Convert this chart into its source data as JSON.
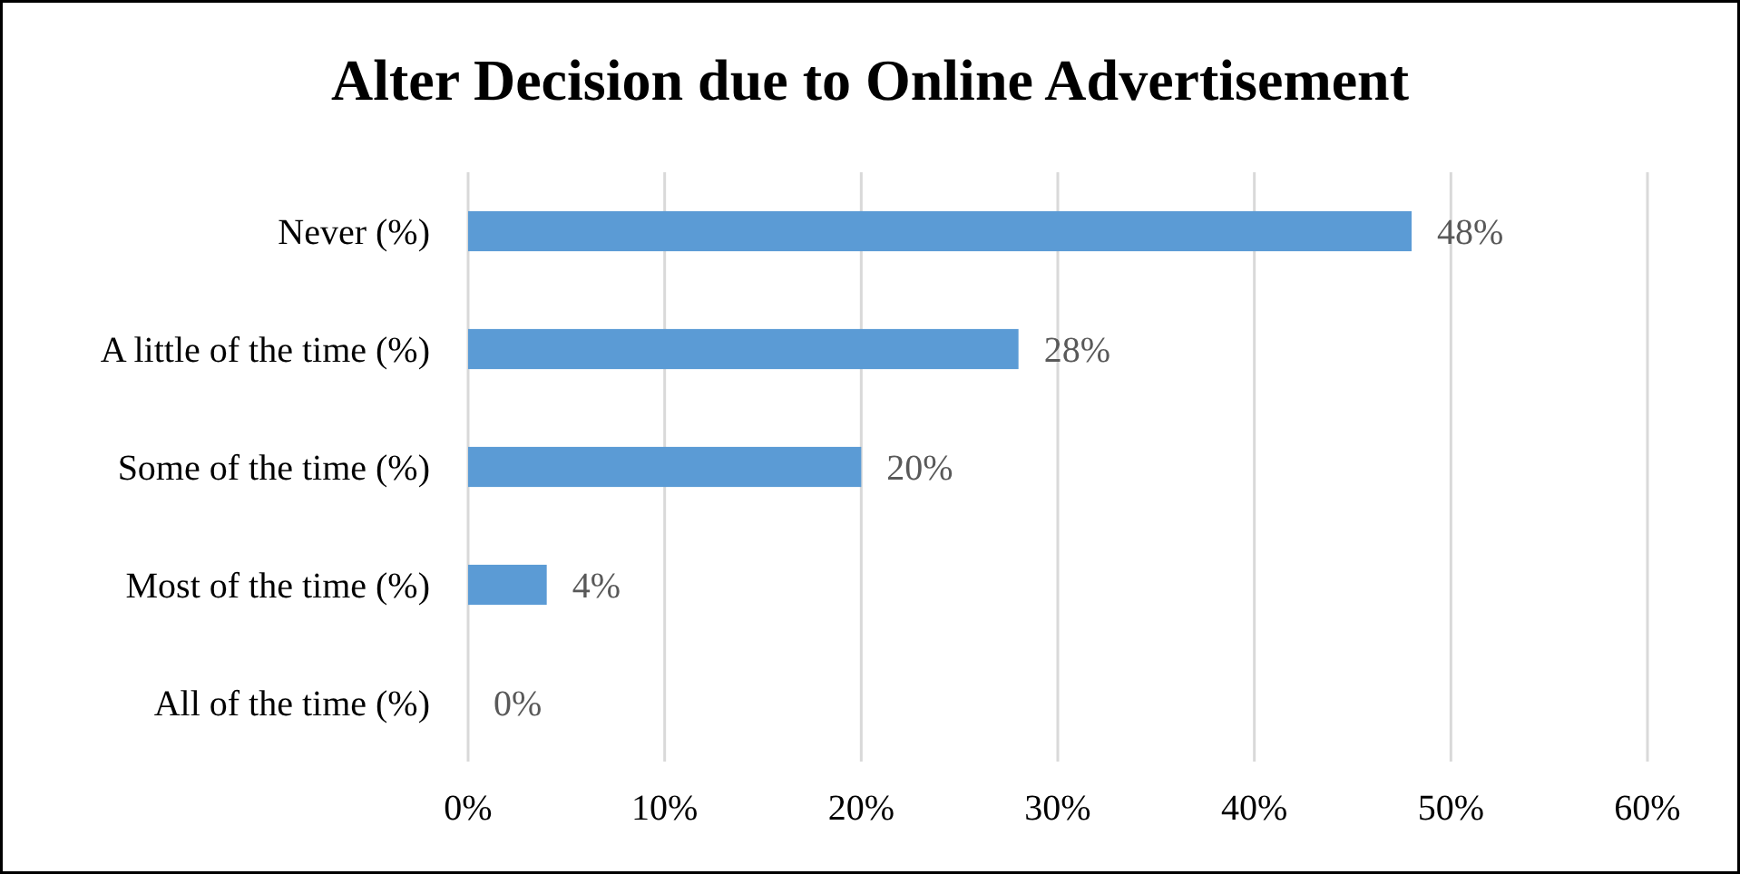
{
  "chart_data": {
    "type": "bar",
    "orientation": "horizontal",
    "title": "Alter Decision due to Online Advertisement",
    "categories": [
      "Never (%)",
      "A little of the time (%)",
      "Some of the time (%)",
      "Most of the time (%)",
      "All of the time (%)"
    ],
    "values": [
      48,
      28,
      20,
      4,
      0
    ],
    "value_labels": [
      "48%",
      "28%",
      "20%",
      "4%",
      "0%"
    ],
    "color": "#5b9bd5",
    "xlim": [
      0,
      60
    ],
    "xticks": [
      {
        "value": 0,
        "label": "0%"
      },
      {
        "value": 10,
        "label": "10%"
      },
      {
        "value": 20,
        "label": "20%"
      },
      {
        "value": 30,
        "label": "30%"
      },
      {
        "value": 40,
        "label": "40%"
      },
      {
        "value": 50,
        "label": "50%"
      },
      {
        "value": 60,
        "label": "60%"
      }
    ],
    "grid": "x"
  }
}
